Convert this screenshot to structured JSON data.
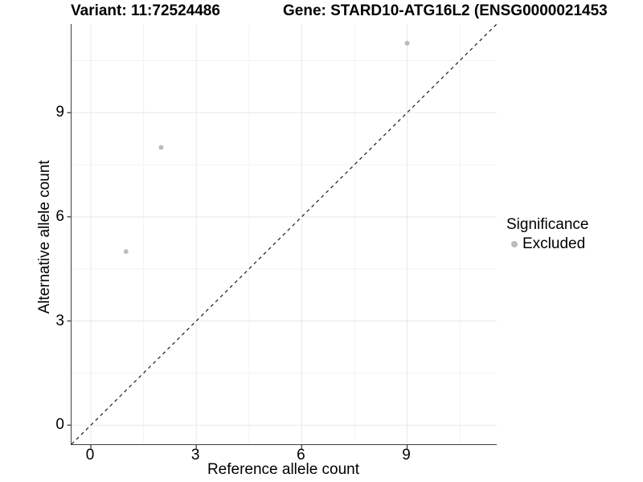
{
  "header": {
    "variant_title": "Variant: 11:72524486",
    "gene_title": "Gene: STARD10-ATG16L2 (ENSG0000021453"
  },
  "chart_data": {
    "type": "scatter",
    "title": "Variant: 11:72524486 — Gene: STARD10-ATG16L2 (ENSG0000021453…)",
    "xlabel": "Reference allele count",
    "ylabel": "Alternative allele count",
    "xlim": [
      -0.55,
      11.55
    ],
    "ylim": [
      -0.55,
      11.55
    ],
    "x_ticks": [
      0,
      3,
      6,
      9
    ],
    "y_ticks": [
      0,
      3,
      6,
      9
    ],
    "x_minor_gridlines": [
      1.5,
      4.5,
      7.5,
      10.5
    ],
    "y_minor_gridlines": [
      1.5,
      4.5,
      7.5,
      10.5
    ],
    "grid": true,
    "legend_position": "right",
    "series": [
      {
        "name": "Excluded",
        "marker": "dot",
        "color": "#bcbcbc",
        "points": [
          {
            "x": 1,
            "y": 5
          },
          {
            "x": 2,
            "y": 8
          },
          {
            "x": 9,
            "y": 11
          }
        ]
      }
    ],
    "reference_line": {
      "kind": "identity",
      "slope": 1,
      "intercept": 0,
      "style": "dashed",
      "color": "#1a1a1a"
    }
  },
  "legend": {
    "title": "Significance",
    "items": [
      {
        "label": "Excluded",
        "color": "#bcbcbc",
        "marker": "dot"
      }
    ]
  },
  "colors": {
    "background": "#ffffff",
    "point": "#bcbcbc",
    "grid_major": "#e8e8e8",
    "grid_minor": "#f2f2f2",
    "axis_line": "#3f3f3f",
    "reference_line": "#1a1a1a",
    "text": "#000000"
  }
}
